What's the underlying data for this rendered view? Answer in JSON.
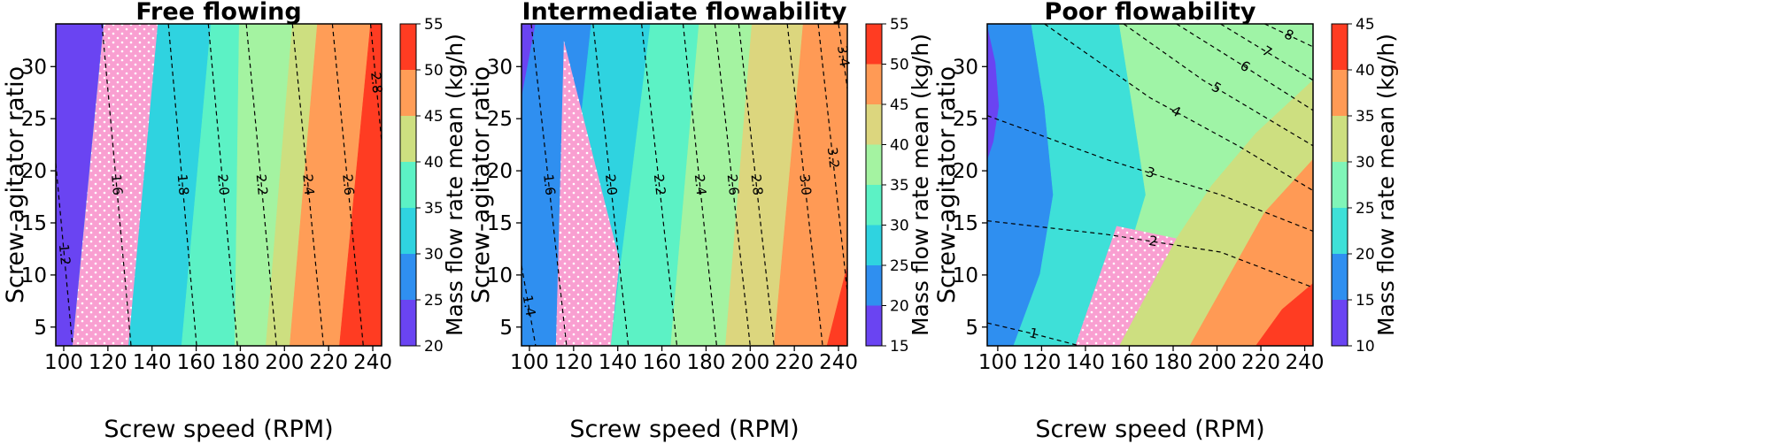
{
  "chart_data": [
    {
      "type": "contourf",
      "title": "Free flowing",
      "xlabel": "Screw speed (RPM)",
      "ylabel": "Screw-agitator ratio",
      "xlim": [
        96.4,
        244
      ],
      "ylim": [
        3.2,
        34.1
      ],
      "xticks": [
        100,
        120,
        140,
        160,
        180,
        200,
        220,
        240
      ],
      "yticks": [
        5,
        10,
        15,
        20,
        25,
        30
      ],
      "regions": [
        {
          "color": "#6a44f2",
          "x": [
            96.4,
            96.4,
            244,
            244
          ],
          "y": [
            3.2,
            34.1,
            34.1,
            3.2
          ]
        },
        {
          "color": "#2f8ff0",
          "x": [
            104.0,
            118.1,
            244,
            244
          ],
          "y": [
            3.2,
            34.1,
            34.1,
            3.2
          ]
        },
        {
          "color": "#2fd3e0",
          "x": [
            129.3,
            142.6,
            244,
            244
          ],
          "y": [
            3.2,
            34.1,
            34.1,
            3.2
          ]
        },
        {
          "color": "#5cf2c5",
          "x": [
            153.4,
            166.7,
            244,
            244
          ],
          "y": [
            3.2,
            34.1,
            34.1,
            3.2
          ]
        },
        {
          "color": "#a4f3a1",
          "x": [
            177.5,
            179.5,
            244,
            244
          ],
          "y": [
            3.2,
            34.1,
            34.1,
            3.2
          ]
        },
        {
          "color": "#cddf80",
          "x": [
            191.6,
            203.6,
            244,
            244
          ],
          "y": [
            3.2,
            34.1,
            34.1,
            3.2
          ]
        },
        {
          "color": "#ff9d57",
          "x": [
            202.4,
            214.9,
            244,
            244
          ],
          "y": [
            3.2,
            34.1,
            34.1,
            3.2
          ]
        },
        {
          "color": "#ff3c22",
          "x": [
            224.9,
            239.0,
            244,
            244
          ],
          "y": [
            3.2,
            34.1,
            34.1,
            3.2
          ]
        }
      ],
      "highlight": {
        "color": "#f99fd1",
        "x": [
          104.0,
          118.1,
          142.6,
          129.3
        ],
        "y": [
          3.2,
          34.1,
          34.1,
          3.2
        ]
      },
      "contours": [
        {
          "level": 1.2,
          "x": [
            96.4,
            104.0
          ],
          "y": [
            20.7,
            3.2
          ]
        },
        {
          "level": 1.6,
          "x": [
            117.3,
            130.5
          ],
          "y": [
            34.1,
            3.2
          ]
        },
        {
          "level": 1.8,
          "x": [
            147.4,
            160.2
          ],
          "y": [
            34.1,
            3.2
          ]
        },
        {
          "level": {
            "value": 2,
            "label": "2.0"
          },
          "x": [
            165.5,
            178.7
          ],
          "y": [
            34.1,
            3.2
          ]
        },
        {
          "level": 2.2,
          "x": [
            182.7,
            196.4
          ],
          "y": [
            34.1,
            3.2
          ]
        },
        {
          "level": 2.4,
          "x": [
            203.6,
            217.7
          ],
          "y": [
            34.1,
            3.2
          ]
        },
        {
          "level": 2.6,
          "x": [
            221.7,
            235.7
          ],
          "y": [
            34.1,
            3.2
          ]
        },
        {
          "level": 2.8,
          "x": [
            239.0,
            244.0
          ],
          "y": [
            34.1,
            22.8
          ]
        }
      ],
      "colorbar": {
        "label": "Mass flow rate mean (kg/h)",
        "ticks": [
          20,
          25,
          30,
          35,
          40,
          45,
          50,
          55
        ],
        "colors": [
          "#6a44f2",
          "#2f8ff0",
          "#2fd3e0",
          "#5cf2c5",
          "#cddf80",
          "#ff9d57",
          "#ff3c22"
        ]
      }
    },
    {
      "type": "contourf",
      "title": "Intermediate flowability",
      "xlabel": "Screw speed (RPM)",
      "ylabel": "Screw-agitator ratio",
      "xlim": [
        96.4,
        244
      ],
      "ylim": [
        3.2,
        34.1
      ],
      "xticks": [
        100,
        120,
        140,
        160,
        180,
        200,
        220,
        240
      ],
      "yticks": [
        5,
        10,
        15,
        20,
        25,
        30
      ],
      "regions": [
        {
          "color": "#6a44f2",
          "x": [
            96.4,
            96.4,
            244,
            244
          ],
          "y": [
            3.2,
            34.1,
            34.1,
            3.2
          ]
        },
        {
          "color": "#2f8ff0",
          "x": [
            96.4,
            102.8,
            244,
            244,
            96.4
          ],
          "y": [
            27.0,
            34.1,
            34.1,
            3.2,
            3.2
          ]
        },
        {
          "color": "#2fd3e0",
          "x": [
            112.0,
            128.0,
            244,
            244
          ],
          "y": [
            3.2,
            34.1,
            34.1,
            3.2
          ]
        },
        {
          "color": "#5cf2c5",
          "x": [
            136.8,
            154.8,
            244,
            244
          ],
          "y": [
            3.2,
            34.1,
            34.1,
            3.2
          ]
        },
        {
          "color": "#a4f3a1",
          "x": [
            164.0,
            176.8,
            244,
            244
          ],
          "y": [
            3.2,
            34.1,
            34.1,
            3.2
          ]
        },
        {
          "color": "#dcd67e",
          "x": [
            188.8,
            200.8,
            244,
            244
          ],
          "y": [
            3.2,
            34.1,
            34.1,
            3.2
          ]
        },
        {
          "color": "#ff9a55",
          "x": [
            210.8,
            224.0,
            244,
            244
          ],
          "y": [
            3.2,
            34.1,
            34.1,
            3.2
          ]
        },
        {
          "color": "#ff3c22",
          "x": [
            234.8,
            244,
            244
          ],
          "y": [
            3.2,
            10.9,
            3.2
          ]
        }
      ],
      "highlight": {
        "color": "#f99fd1",
        "x": [
          112.0,
          115.6,
          140.8,
          136.8
        ],
        "y": [
          3.2,
          32.5,
          11.4,
          3.2
        ]
      },
      "contours": [
        {
          "level": 1.4,
          "x": [
            96.4,
            102.8
          ],
          "y": [
            10.9,
            3.2
          ]
        },
        {
          "level": 1.6,
          "x": [
            100.8,
            116.8
          ],
          "y": [
            34.1,
            3.2
          ]
        },
        {
          "level": {
            "value": 2,
            "label": "2.0"
          },
          "x": [
            128.8,
            144.8
          ],
          "y": [
            34.1,
            3.2
          ]
        },
        {
          "level": 2.2,
          "x": [
            150.8,
            166.8
          ],
          "y": [
            34.1,
            3.2
          ]
        },
        {
          "level": 2.4,
          "x": [
            169.6,
            184.8
          ],
          "y": [
            34.1,
            3.2
          ]
        },
        {
          "level": 2.6,
          "x": [
            184.0,
            200.0
          ],
          "y": [
            34.1,
            3.2
          ]
        },
        {
          "level": 2.8,
          "x": [
            194.8,
            210.8
          ],
          "y": [
            34.1,
            3.2
          ]
        },
        {
          "level": {
            "value": 3,
            "label": "3.0"
          },
          "x": [
            216.8,
            232.8
          ],
          "y": [
            34.1,
            3.2
          ]
        },
        {
          "level": 3.2,
          "x": [
            230.8,
            244
          ],
          "y": [
            34.1,
            8.4
          ]
        },
        {
          "level": 3.4,
          "x": [
            240.0,
            244
          ],
          "y": [
            34.1,
            27.9
          ]
        }
      ],
      "colorbar": {
        "label": "Mass flow rate mean (kg/h)",
        "ticks": [
          15,
          20,
          25,
          30,
          35,
          40,
          45,
          50,
          55
        ],
        "colors": [
          "#6a44f2",
          "#2f8ff0",
          "#2fd3e0",
          "#5cf2c5",
          "#a4f3a1",
          "#dcd67e",
          "#ff9a55",
          "#ff3c22"
        ]
      }
    },
    {
      "type": "contourf",
      "title": "Poor flowability",
      "xlabel": "Screw speed (RPM)",
      "ylabel": "Screw-agitator ratio",
      "xlim": [
        95.2,
        243.8
      ],
      "ylim": [
        3.2,
        34.1
      ],
      "xticks": [
        100,
        120,
        140,
        160,
        180,
        200,
        220,
        240
      ],
      "yticks": [
        5,
        10,
        15,
        20,
        25,
        30
      ],
      "regions": [
        {
          "color": "#2f8ff0",
          "x": [
            95.2,
            95.2,
            243.8,
            243.8
          ],
          "y": [
            3.2,
            34.1,
            34.1,
            3.2
          ]
        },
        {
          "color": "#6a44f2",
          "x": [
            95.2,
            98.8,
            100.4,
            97.9,
            95.2
          ],
          "y": [
            33.8,
            30.4,
            26.2,
            22.8,
            21.1
          ]
        },
        {
          "color": "#3ee0d8",
          "x": [
            115.3,
            121.3,
            125.3,
            119.3,
            107.2,
            243.8,
            243.8
          ],
          "y": [
            34.1,
            26.2,
            17.7,
            10.1,
            3.2,
            3.2,
            34.1
          ]
        },
        {
          "color": "#9ff4a6",
          "x": [
            155.4,
            161.4,
            167.5,
            154.2,
            141.4,
            243.8,
            243.8
          ],
          "y": [
            34.1,
            26.2,
            17.7,
            8.4,
            3.2,
            3.2,
            34.1
          ]
        },
        {
          "color": "#cddf80",
          "x": [
            243.8,
            217.7,
            197.6,
            181.5,
            154.2,
            243.8
          ],
          "y": [
            28.7,
            23.6,
            18.6,
            13.5,
            3.2,
            3.2
          ]
        },
        {
          "color": "#ff9a55",
          "x": [
            243.8,
            221.7,
            203.6,
            187.6,
            243.8
          ],
          "y": [
            21.1,
            16.0,
            9.2,
            3.2,
            3.2
          ]
        },
        {
          "color": "#ff3c22",
          "x": [
            243.8,
            229.7,
            217.7,
            243.8
          ],
          "y": [
            9.2,
            6.7,
            3.2,
            3.2
          ]
        }
      ],
      "highlight": {
        "color": "#f99fd1",
        "x": [
          135.3,
          154.2,
          181.5,
          155.4
        ],
        "y": [
          3.2,
          14.7,
          13.5,
          3.2
        ]
      },
      "contours": [
        {
          "level": 1,
          "x": [
            95.2,
            117.3,
            137.3
          ],
          "y": [
            5.4,
            4.3,
            3.2
          ]
        },
        {
          "level": 2,
          "x": [
            95.2,
            149.4,
            201.6,
            243.8
          ],
          "y": [
            15.2,
            13.9,
            12.2,
            8.8
          ]
        },
        {
          "level": 3,
          "x": [
            95.2,
            149.4,
            201.6,
            243.8
          ],
          "y": [
            25.3,
            21.1,
            17.7,
            14.2
          ]
        },
        {
          "level": 4,
          "x": [
            121.3,
            169.5,
            209.6,
            243.8
          ],
          "y": [
            34.1,
            27.0,
            22.4,
            18.1
          ]
        },
        {
          "level": 5,
          "x": [
            157.4,
            193.6,
            243.8
          ],
          "y": [
            34.1,
            28.7,
            22.4
          ]
        },
        {
          "level": 6,
          "x": [
            181.5,
            209.6,
            243.8
          ],
          "y": [
            34.1,
            30.4,
            25.8
          ]
        },
        {
          "level": 7,
          "x": [
            201.6,
            243.8
          ],
          "y": [
            34.1,
            28.7
          ]
        },
        {
          "level": 8,
          "x": [
            221.7,
            243.8
          ],
          "y": [
            34.1,
            31.9
          ]
        }
      ],
      "colorbar": {
        "label": "Mass flow rate mean (kg/h)",
        "ticks": [
          10,
          15,
          20,
          25,
          30,
          35,
          40,
          45
        ],
        "colors": [
          "#6a44f2",
          "#2f8ff0",
          "#3ee0d8",
          "#80f5b8",
          "#cddf80",
          "#ff9a55",
          "#ff3c22"
        ]
      }
    }
  ]
}
